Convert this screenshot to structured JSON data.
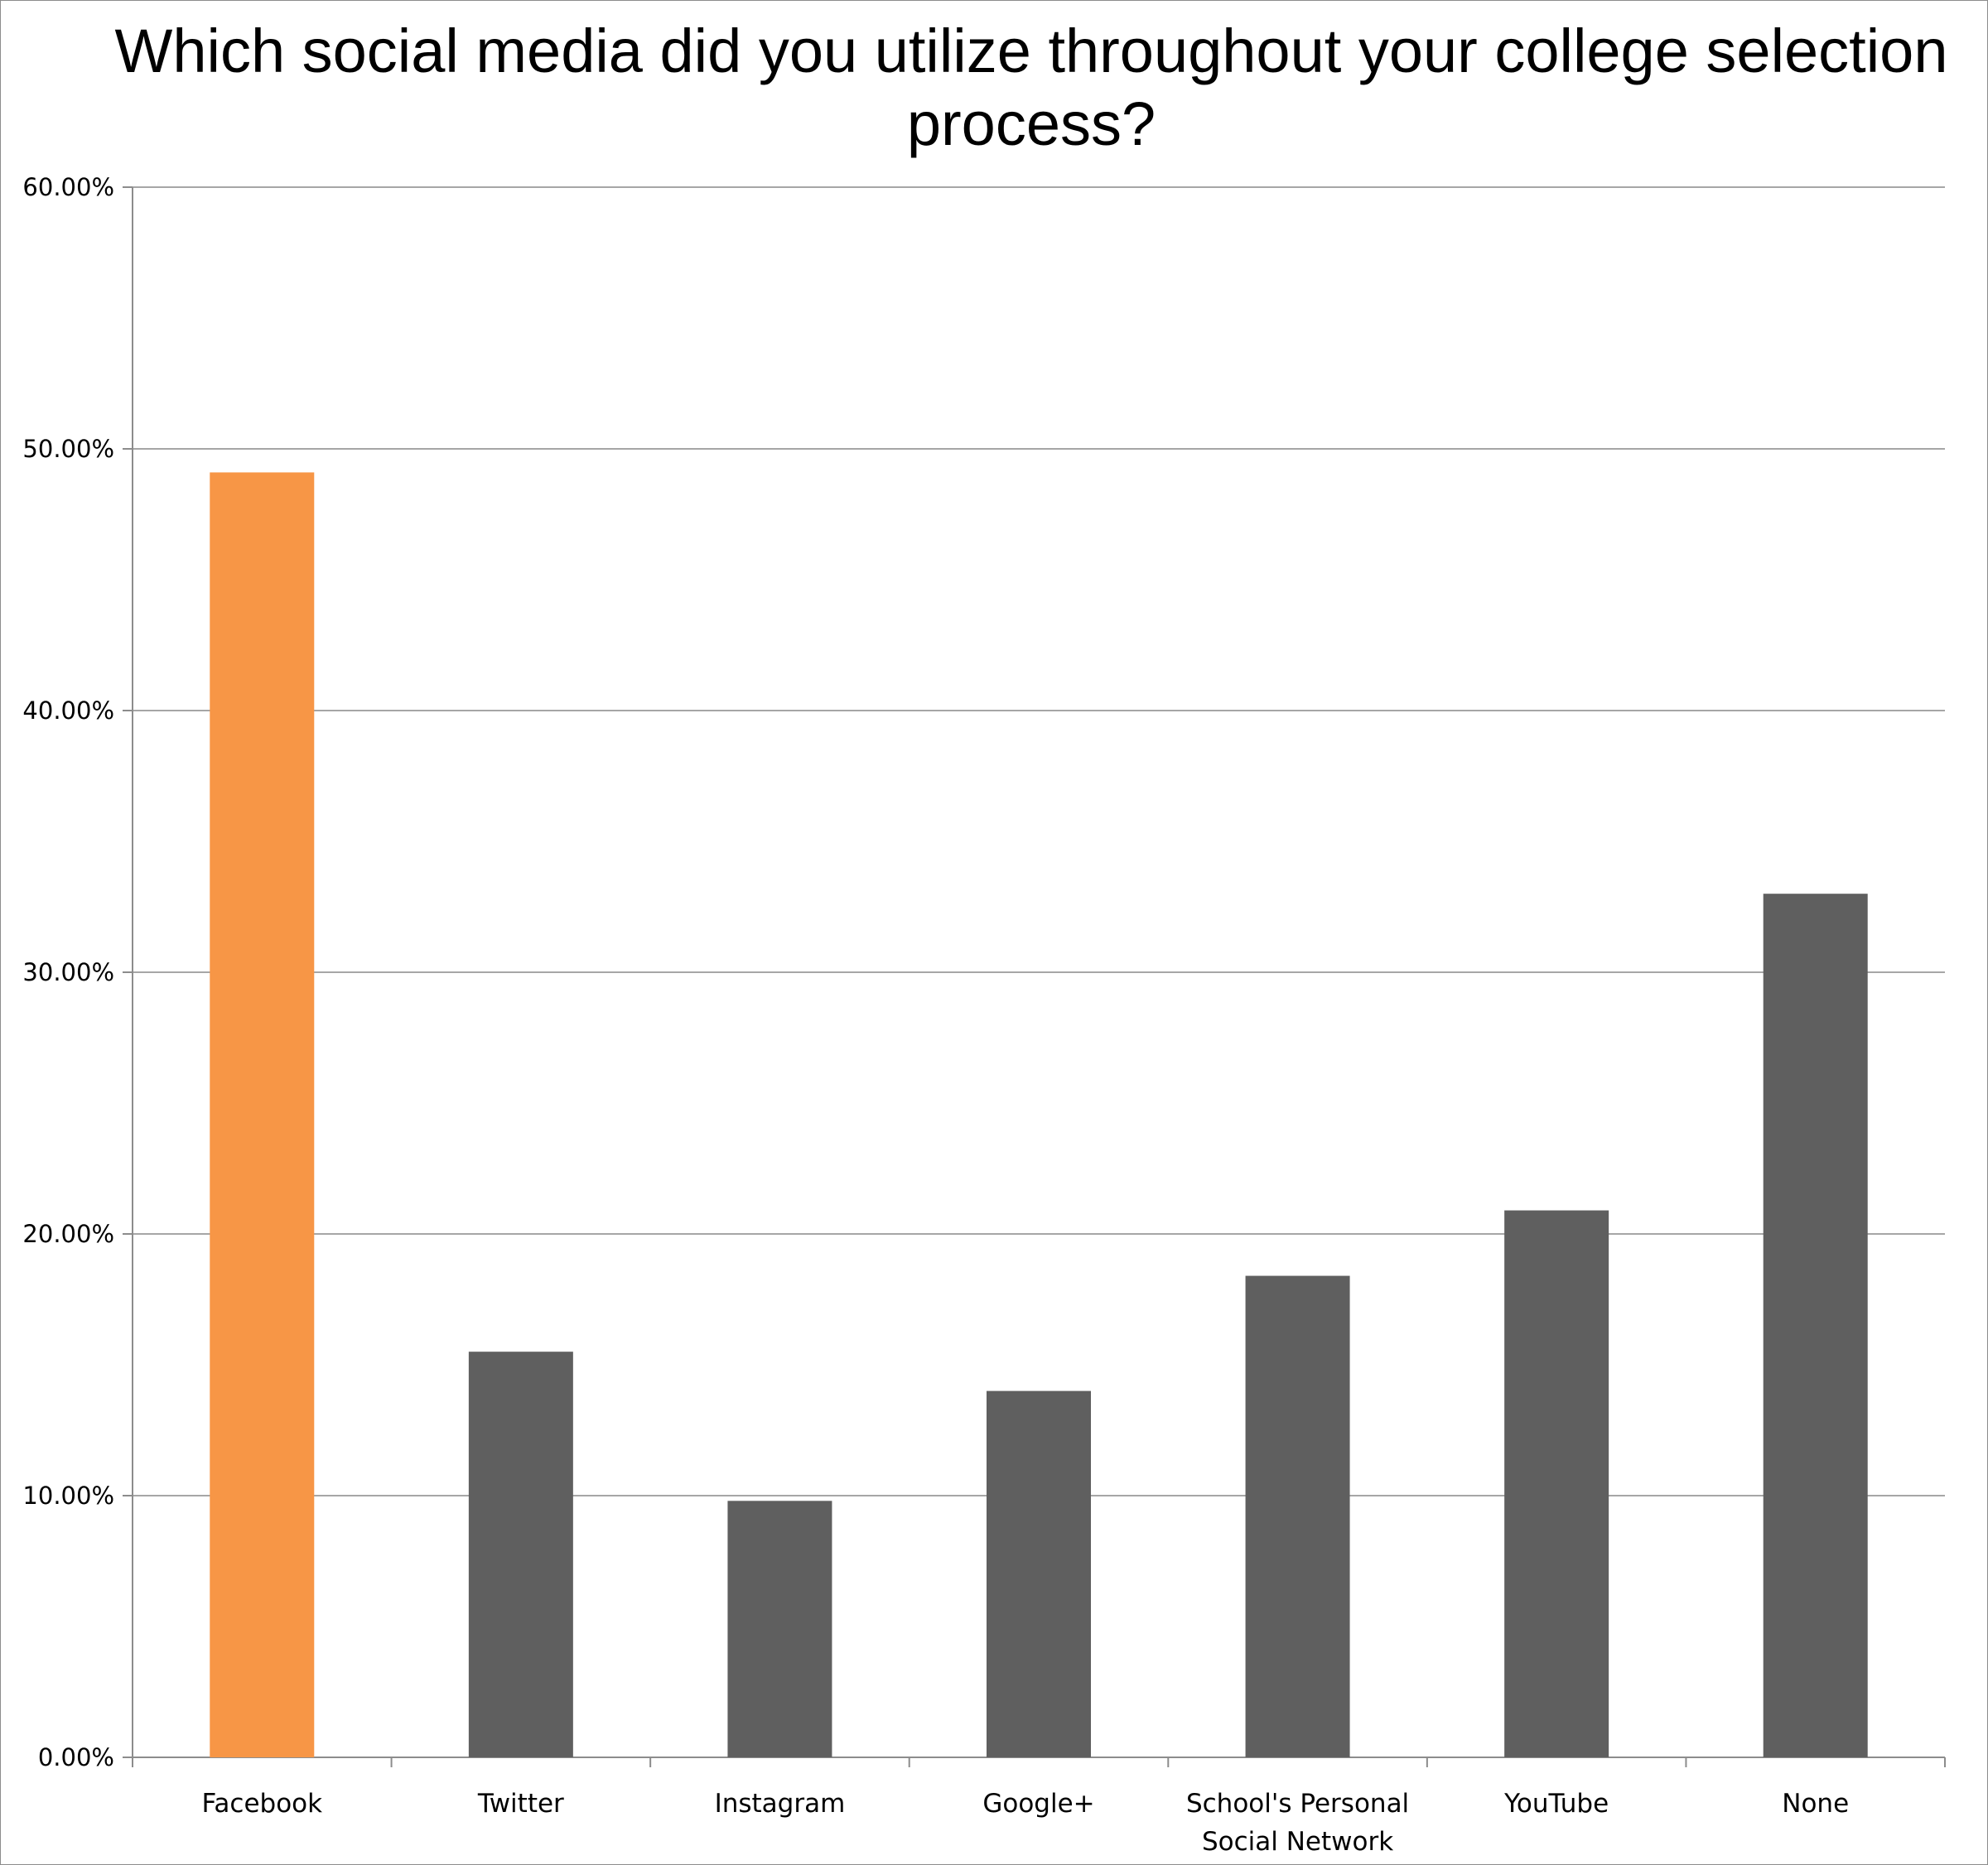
{
  "chart_data": {
    "type": "bar",
    "title": "Which social media did you utilize throughout your college selection process?",
    "categories": [
      "Facebook",
      "Twitter",
      "Instagram",
      "Google+",
      "School's Personal Social Network",
      "YouTube",
      "None"
    ],
    "category_lines": [
      [
        "Facebook"
      ],
      [
        "Twitter"
      ],
      [
        "Instagram"
      ],
      [
        "Google+"
      ],
      [
        "School's Personal",
        "Social Network"
      ],
      [
        "YouTube"
      ],
      [
        "None"
      ]
    ],
    "values": [
      0.491,
      0.155,
      0.098,
      0.14,
      0.184,
      0.209,
      0.33
    ],
    "bar_colors": [
      "#f79646",
      "#5f5f5f",
      "#5f5f5f",
      "#5f5f5f",
      "#5f5f5f",
      "#5f5f5f",
      "#5f5f5f"
    ],
    "ylim": [
      0,
      0.6
    ],
    "yticks": [
      0,
      0.1,
      0.2,
      0.3,
      0.4,
      0.5,
      0.6
    ],
    "ytick_labels": [
      "0.00%",
      "10.00%",
      "20.00%",
      "30.00%",
      "40.00%",
      "50.00%",
      "60.00%"
    ],
    "xlabel": "",
    "ylabel": "",
    "grid": true,
    "gridline_color": "#a6a6a6",
    "axis_color": "#8c8c8c"
  }
}
